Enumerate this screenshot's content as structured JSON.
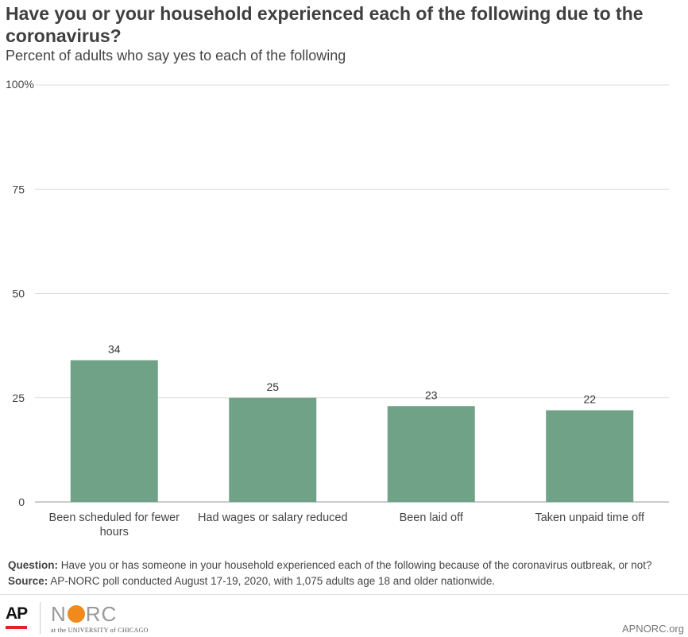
{
  "title": "Have you or your household experienced each of the following due to the coronavirus?",
  "subtitle": "Percent of adults who say yes to each of the following",
  "chart_data": {
    "type": "bar",
    "categories": [
      "Been scheduled for fewer hours",
      "Had wages or salary reduced",
      "Been laid off",
      "Taken unpaid time off"
    ],
    "values": [
      34,
      25,
      23,
      22
    ],
    "ylim": [
      0,
      100
    ],
    "yticks": [
      "0",
      "25",
      "50",
      "75",
      "100%"
    ],
    "ytick_values": [
      0,
      25,
      50,
      75,
      100
    ],
    "grid": true,
    "bar_color": "#6fa287"
  },
  "notes": {
    "question_label": "Question:",
    "question_text": "Have you or has someone in your household experienced each of the following because of the coronavirus outbreak, or not?",
    "source_label": "Source:",
    "source_text": "AP-NORC poll conducted August 17-19, 2020, with 1,075 adults age 18 and older nationwide."
  },
  "footer": {
    "ap_logo": "AP",
    "norc_logo_left": "N",
    "norc_logo_right": "RC",
    "norc_sub": "at the UNIVERSITY of CHICAGO",
    "site": "APNORC.org",
    "ap_red": "#e4202a",
    "norc_orange": "#f08a1c"
  }
}
